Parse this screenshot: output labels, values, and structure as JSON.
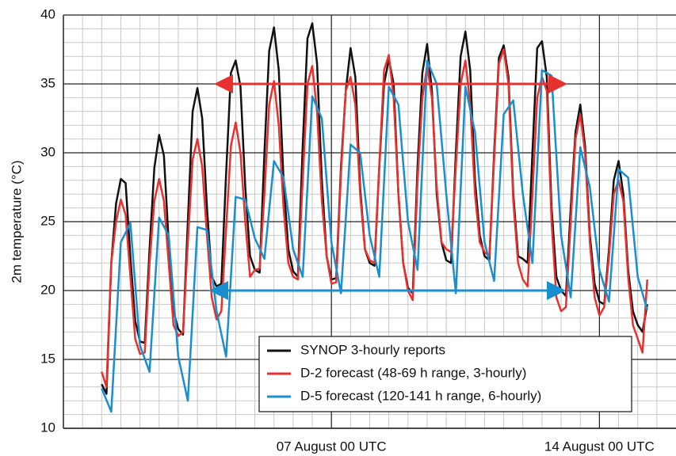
{
  "chart_data": {
    "type": "line",
    "ylabel": "2m temperature (°C)",
    "x": [
      1,
      1.125,
      1.25,
      1.375,
      1.5,
      1.625,
      1.75,
      1.875,
      2,
      2.125,
      2.25,
      2.375,
      2.5,
      2.625,
      2.75,
      2.875,
      3,
      3.125,
      3.25,
      3.375,
      3.5,
      3.625,
      3.75,
      3.875,
      4,
      4.125,
      4.25,
      4.375,
      4.5,
      4.625,
      4.75,
      4.875,
      5,
      5.125,
      5.25,
      5.375,
      5.5,
      5.625,
      5.75,
      5.875,
      6,
      6.125,
      6.25,
      6.375,
      6.5,
      6.625,
      6.75,
      6.875,
      7,
      7.125,
      7.25,
      7.375,
      7.5,
      7.625,
      7.75,
      7.875,
      8,
      8.125,
      8.25,
      8.375,
      8.5,
      8.625,
      8.75,
      8.875,
      9,
      9.125,
      9.25,
      9.375,
      9.5,
      9.625,
      9.75,
      9.875,
      10,
      10.125,
      10.25,
      10.375,
      10.5,
      10.625,
      10.75,
      10.875,
      11,
      11.125,
      11.25,
      11.375,
      11.5,
      11.625,
      11.75,
      11.875,
      12,
      12.125,
      12.25,
      12.375,
      12.5,
      12.625,
      12.75,
      12.875,
      13,
      13.125,
      13.25,
      13.375,
      13.5,
      13.625,
      13.75,
      13.875,
      14,
      14.125,
      14.25,
      14.375,
      14.5,
      14.625,
      14.75,
      14.875,
      15,
      15.125,
      15.25
    ],
    "series": [
      {
        "name": "SYNOP 3-hourly reports",
        "color": "#111111",
        "values": [
          13.2,
          12.5,
          22.0,
          26.3,
          28.1,
          27.8,
          22.4,
          17.8,
          16.3,
          16.2,
          23.0,
          28.9,
          31.3,
          29.8,
          23.5,
          18.5,
          17.2,
          16.8,
          25.0,
          33.0,
          34.7,
          32.5,
          26.0,
          21.0,
          20.3,
          20.5,
          28.5,
          35.8,
          36.7,
          34.8,
          27.5,
          22.5,
          21.5,
          21.3,
          30.0,
          37.4,
          39.1,
          36.0,
          28.0,
          23.0,
          21.4,
          21.0,
          30.5,
          38.3,
          39.4,
          36.5,
          28.0,
          22.5,
          20.8,
          20.9,
          29.0,
          34.5,
          37.6,
          35.5,
          27.5,
          23.0,
          22.0,
          21.8,
          29.0,
          35.0,
          36.8,
          35.0,
          27.0,
          22.0,
          20.2,
          19.8,
          29.0,
          35.8,
          37.9,
          34.5,
          27.0,
          23.5,
          22.2,
          22.0,
          30.0,
          37.0,
          38.8,
          36.0,
          28.0,
          24.0,
          22.5,
          22.2,
          30.0,
          36.9,
          37.8,
          35.5,
          27.0,
          22.5,
          22.3,
          22.0,
          30.0,
          37.6,
          38.1,
          35.5,
          26.0,
          21.0,
          20.0,
          19.6,
          26.0,
          31.5,
          33.5,
          30.5,
          24.0,
          20.5,
          19.2,
          19.0,
          23.0,
          28.0,
          29.4,
          27.0,
          21.5,
          18.5,
          17.5,
          17.0,
          19.0
        ]
      },
      {
        "name": "D-2 forecast (48-69 h range, 3-hourly)",
        "color": "#e8312f",
        "values": [
          14.1,
          13.0,
          22.0,
          25.0,
          26.6,
          25.5,
          21.0,
          16.5,
          15.4,
          15.5,
          22.0,
          26.5,
          28.1,
          26.5,
          22.0,
          17.5,
          16.7,
          17.0,
          23.5,
          29.5,
          31.0,
          29.0,
          24.0,
          19.5,
          17.9,
          18.5,
          24.5,
          30.5,
          32.2,
          30.0,
          25.0,
          21.0,
          21.5,
          21.6,
          27.0,
          33.5,
          35.2,
          32.0,
          26.0,
          22.0,
          21.0,
          20.8,
          28.0,
          35.0,
          36.3,
          33.0,
          26.5,
          22.5,
          20.5,
          20.6,
          28.5,
          34.5,
          35.5,
          33.5,
          27.0,
          23.0,
          22.2,
          22.0,
          29.0,
          36.0,
          37.1,
          34.0,
          27.0,
          22.0,
          20.0,
          19.3,
          28.0,
          34.0,
          36.3,
          34.0,
          27.5,
          23.5,
          23.0,
          22.8,
          29.0,
          35.0,
          36.7,
          33.5,
          27.0,
          23.5,
          22.8,
          22.5,
          29.5,
          36.5,
          37.5,
          35.0,
          26.5,
          22.0,
          20.8,
          20.3,
          27.0,
          34.0,
          35.5,
          34.5,
          25.0,
          19.5,
          18.5,
          18.8,
          25.0,
          31.0,
          32.8,
          30.0,
          23.5,
          19.5,
          18.2,
          18.8,
          22.5,
          27.0,
          28.0,
          26.5,
          21.0,
          17.5,
          16.5,
          15.5,
          20.8
        ]
      },
      {
        "name": "D-5 forecast (120-141 h range, 6-hourly)",
        "color": "#1a8fd0",
        "x": [
          1,
          1.25,
          1.5,
          1.75,
          2,
          2.25,
          2.5,
          2.75,
          3,
          3.25,
          3.5,
          3.75,
          4,
          4.25,
          4.5,
          4.75,
          5,
          5.25,
          5.5,
          5.75,
          6,
          6.25,
          6.5,
          6.75,
          7,
          7.25,
          7.5,
          7.75,
          8,
          8.25,
          8.5,
          8.75,
          9,
          9.25,
          9.5,
          9.75,
          10,
          10.25,
          10.5,
          10.75,
          11,
          11.25,
          11.5,
          11.75,
          12,
          12.25,
          12.5,
          12.75,
          13,
          13.25,
          13.5,
          13.75,
          14,
          14.25,
          14.5,
          14.75,
          15,
          15.25
        ],
        "values": [
          12.9,
          11.2,
          23.5,
          24.9,
          16.0,
          14.1,
          25.3,
          24.0,
          15.2,
          12.0,
          24.6,
          24.4,
          18.5,
          15.2,
          26.8,
          26.6,
          23.8,
          22.3,
          29.4,
          28.2,
          23.0,
          21.0,
          34.1,
          32.5,
          23.5,
          19.8,
          30.6,
          30.0,
          24.0,
          21.0,
          34.8,
          33.5,
          25.0,
          21.5,
          36.7,
          35.0,
          27.0,
          19.8,
          34.8,
          31.5,
          23.5,
          20.7,
          32.8,
          33.8,
          27.0,
          22.0,
          36.0,
          35.6,
          24.0,
          19.5,
          30.4,
          27.5,
          21.5,
          19.2,
          28.8,
          28.2,
          21.0,
          18.6
        ]
      }
    ],
    "xlim": [
      0,
      16
    ],
    "xticks": [
      {
        "value": 7,
        "label": "07 August 00 UTC"
      },
      {
        "value": 14,
        "label": "14 August 00 UTC"
      }
    ],
    "ylim": [
      10,
      40
    ],
    "yticks": [
      10,
      15,
      20,
      25,
      30,
      35,
      40
    ],
    "grid": true,
    "legend": "lower center"
  }
}
